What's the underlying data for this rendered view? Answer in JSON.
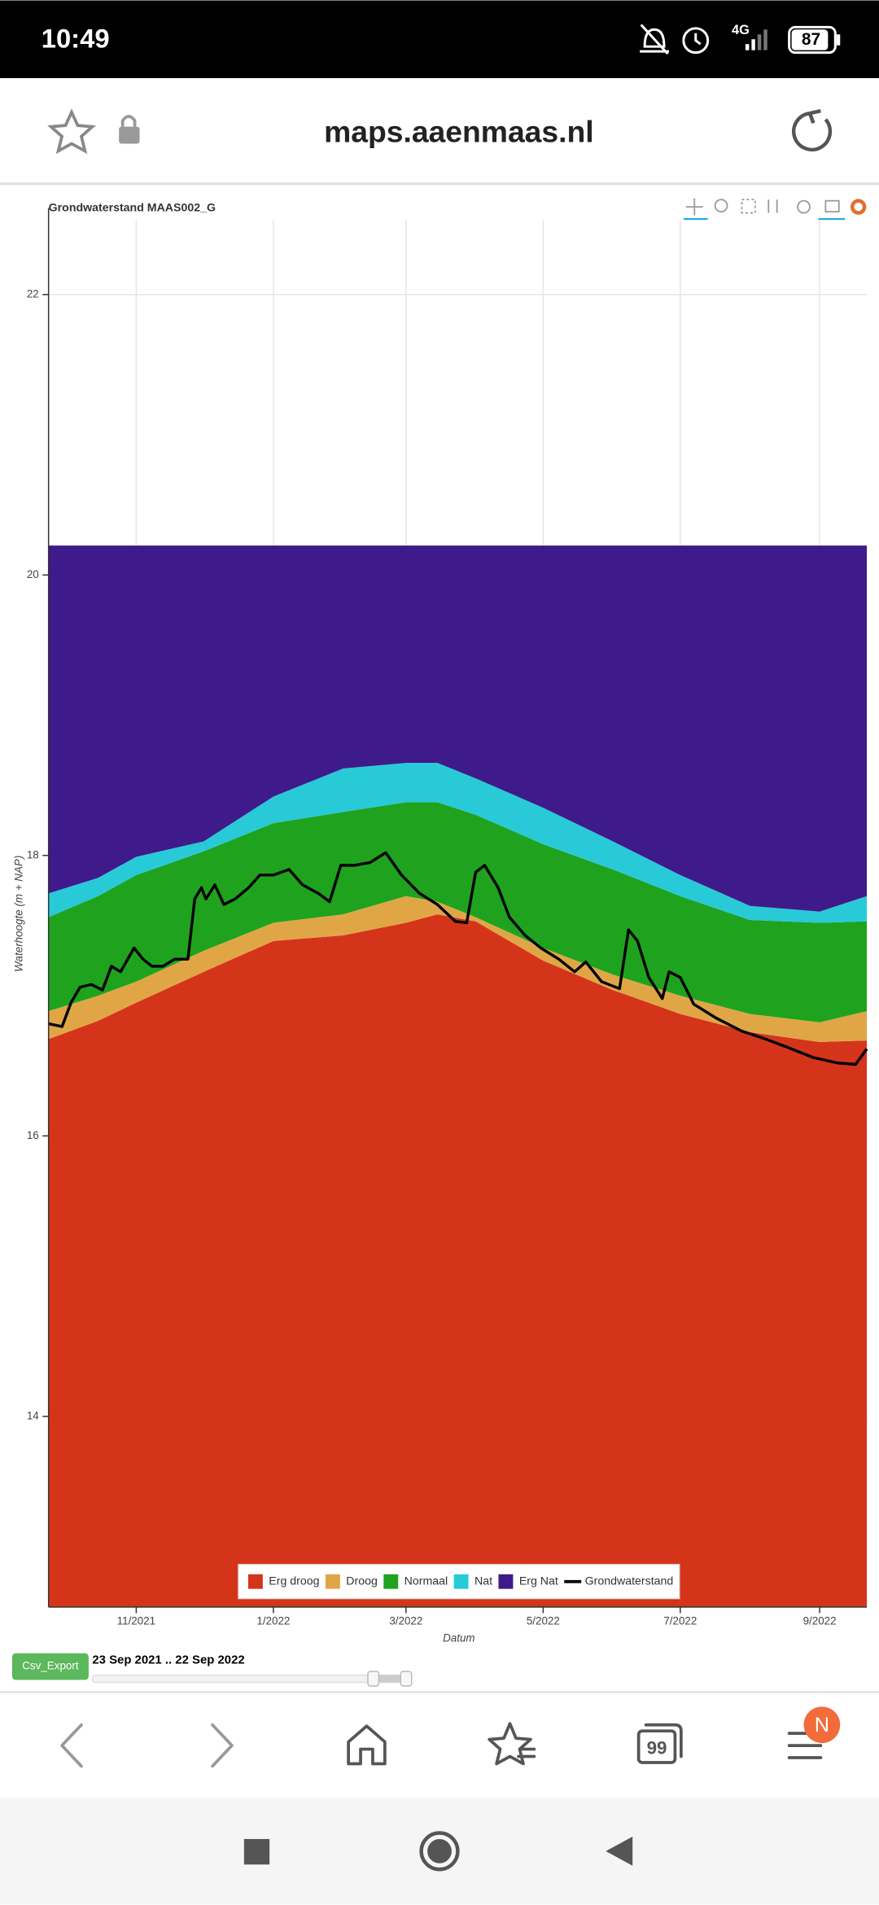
{
  "status_bar": {
    "time": "10:49",
    "network": "4G",
    "battery": "87"
  },
  "browser_bar": {
    "url": "maps.aaenmaas.nl"
  },
  "chart_data": {
    "type": "area",
    "title": "Grondwaterstand MAAS002_G",
    "ylabel": "Waterhoogte (m + NAP)",
    "xlabel": "Datum",
    "legend": "bottom",
    "grid": true,
    "ylim": [
      12.64,
      22.53
    ],
    "yticks": [
      14,
      16,
      18,
      20,
      22
    ],
    "xlim": [
      "2021-09-23",
      "2022-09-22"
    ],
    "xticks": [
      {
        "value": "2021-11-01",
        "label": "11/2021"
      },
      {
        "value": "2022-01-01",
        "label": "1/2022"
      },
      {
        "value": "2022-03-01",
        "label": "3/2022"
      },
      {
        "value": "2022-05-01",
        "label": "5/2022"
      },
      {
        "value": "2022-07-01",
        "label": "7/2022"
      },
      {
        "value": "2022-09-01",
        "label": "9/2022"
      }
    ],
    "x": [
      "2021-09-23",
      "2021-10-15",
      "2021-11-01",
      "2021-12-01",
      "2022-01-01",
      "2022-02-01",
      "2022-03-01",
      "2022-03-15",
      "2022-04-01",
      "2022-05-01",
      "2022-06-01",
      "2022-07-01",
      "2022-08-01",
      "2022-09-01",
      "2022-09-22"
    ],
    "series": [
      {
        "name": "Erg droog",
        "color": "#d4351a",
        "values": [
          16.69,
          16.82,
          16.95,
          17.17,
          17.39,
          17.43,
          17.52,
          17.58,
          17.53,
          17.25,
          17.04,
          16.87,
          16.74,
          16.67,
          16.68
        ]
      },
      {
        "name": "Droog",
        "color": "#e0a646",
        "values": [
          16.89,
          17.0,
          17.1,
          17.32,
          17.52,
          17.58,
          17.71,
          17.67,
          17.56,
          17.34,
          17.15,
          17.0,
          16.87,
          16.81,
          16.89
        ]
      },
      {
        "name": "Normaal",
        "color": "#1fa31f",
        "values": [
          17.56,
          17.71,
          17.86,
          18.03,
          18.23,
          18.31,
          18.38,
          18.38,
          18.29,
          18.08,
          17.9,
          17.71,
          17.54,
          17.52,
          17.53
        ]
      },
      {
        "name": "Nat",
        "color": "#28cad8",
        "values": [
          17.73,
          17.84,
          17.99,
          18.1,
          18.42,
          18.62,
          18.66,
          18.66,
          18.55,
          18.34,
          18.1,
          17.86,
          17.64,
          17.6,
          17.71
        ]
      },
      {
        "name": "Erg Nat",
        "color": "#3f1a8a",
        "values": [
          20.21,
          20.21,
          20.21,
          20.21,
          20.21,
          20.21,
          20.21,
          20.21,
          20.21,
          20.21,
          20.21,
          20.21,
          20.21,
          20.21,
          20.21
        ]
      },
      {
        "name": "Grondwaterstand",
        "color": "#000000",
        "type": "line",
        "x": [
          "2021-09-23",
          "2021-09-29",
          "2021-10-03",
          "2021-10-07",
          "2021-10-12",
          "2021-10-17",
          "2021-10-21",
          "2021-10-25",
          "2021-10-31",
          "2021-11-04",
          "2021-11-08",
          "2021-11-13",
          "2021-11-18",
          "2021-11-24",
          "2021-11-27",
          "2021-11-30",
          "2021-12-02",
          "2021-12-06",
          "2021-12-10",
          "2021-12-15",
          "2021-12-21",
          "2021-12-26",
          "2022-01-01",
          "2022-01-08",
          "2022-01-14",
          "2022-01-21",
          "2022-01-26",
          "2022-01-31",
          "2022-02-06",
          "2022-02-13",
          "2022-02-20",
          "2022-02-27",
          "2022-03-07",
          "2022-03-15",
          "2022-03-23",
          "2022-03-28",
          "2022-04-01",
          "2022-04-05",
          "2022-04-11",
          "2022-04-16",
          "2022-04-23",
          "2022-04-30",
          "2022-05-08",
          "2022-05-15",
          "2022-05-20",
          "2022-05-27",
          "2022-06-04",
          "2022-06-08",
          "2022-06-12",
          "2022-06-17",
          "2022-06-23",
          "2022-06-26",
          "2022-07-01",
          "2022-07-07",
          "2022-07-17",
          "2022-07-28",
          "2022-08-08",
          "2022-08-18",
          "2022-08-29",
          "2022-09-09",
          "2022-09-17",
          "2022-09-22"
        ],
        "values": [
          16.8,
          16.78,
          16.95,
          17.06,
          17.08,
          17.04,
          17.21,
          17.17,
          17.34,
          17.26,
          17.21,
          17.21,
          17.26,
          17.26,
          17.69,
          17.77,
          17.69,
          17.79,
          17.65,
          17.69,
          17.77,
          17.86,
          17.86,
          17.9,
          17.79,
          17.73,
          17.67,
          17.93,
          17.93,
          17.95,
          18.02,
          17.86,
          17.73,
          17.65,
          17.53,
          17.52,
          17.88,
          17.93,
          17.77,
          17.56,
          17.43,
          17.34,
          17.26,
          17.17,
          17.24,
          17.1,
          17.05,
          17.47,
          17.39,
          17.13,
          16.98,
          17.17,
          17.13,
          16.94,
          16.84,
          16.75,
          16.69,
          16.63,
          16.56,
          16.52,
          16.51,
          16.62
        ]
      }
    ]
  },
  "controls": {
    "export_button": "Csv_Export",
    "date_range": "23 Sep 2021 .. 22 Sep 2022"
  },
  "nav_bar": {
    "tabs_count": "99",
    "profile_initial": "N"
  }
}
